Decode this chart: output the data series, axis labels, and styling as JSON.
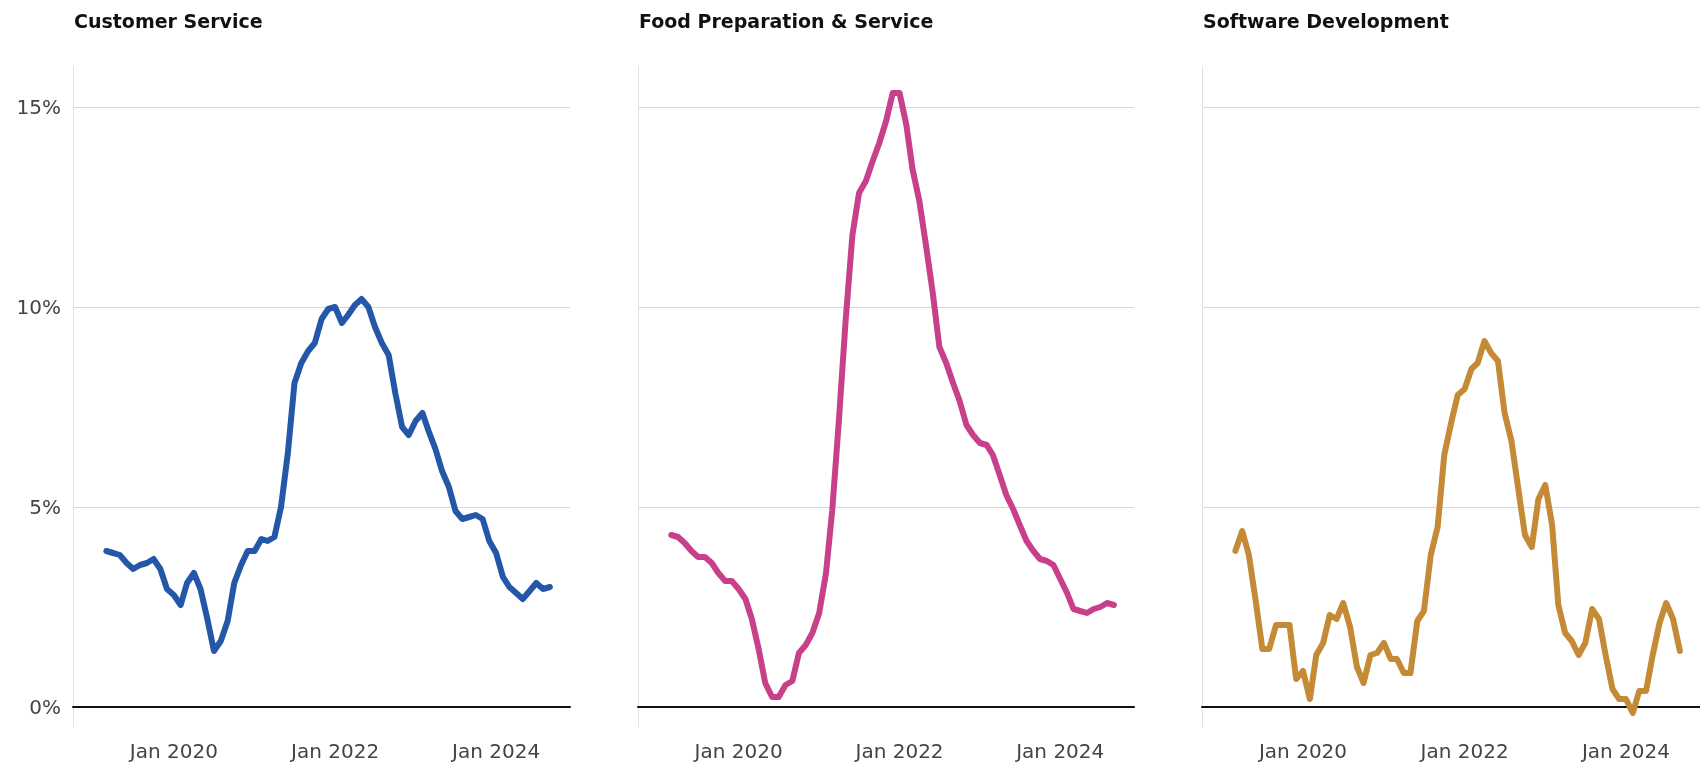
{
  "chart_data": [
    {
      "type": "line",
      "title": "Customer Service",
      "marker": "none",
      "grid": "y",
      "x": [
        "2019-03",
        "2019-04",
        "2019-05",
        "2019-06",
        "2019-07",
        "2019-08",
        "2019-09",
        "2019-10",
        "2019-11",
        "2019-12",
        "2020-01",
        "2020-02",
        "2020-03",
        "2020-04",
        "2020-05",
        "2020-06",
        "2020-07",
        "2020-08",
        "2020-09",
        "2020-10",
        "2020-11",
        "2020-12",
        "2021-01",
        "2021-02",
        "2021-03",
        "2021-04",
        "2021-05",
        "2021-06",
        "2021-07",
        "2021-08",
        "2021-09",
        "2021-10",
        "2021-11",
        "2021-12",
        "2022-01",
        "2022-02",
        "2022-03",
        "2022-04",
        "2022-05",
        "2022-06",
        "2022-07",
        "2022-08",
        "2022-09",
        "2022-10",
        "2022-11",
        "2022-12",
        "2023-01",
        "2023-02",
        "2023-03",
        "2023-04",
        "2023-05",
        "2023-06",
        "2023-07",
        "2023-08",
        "2023-09",
        "2023-10",
        "2023-11",
        "2023-12",
        "2024-01",
        "2024-02",
        "2024-03",
        "2024-04",
        "2024-05",
        "2024-06",
        "2024-07",
        "2024-08",
        "2024-09"
      ],
      "series": [
        {
          "color": "#2457a8",
          "values": [
            3.9,
            3.85,
            3.8,
            3.6,
            3.45,
            3.55,
            3.6,
            3.7,
            3.45,
            2.95,
            2.8,
            2.55,
            3.1,
            3.35,
            2.95,
            2.2,
            1.4,
            1.65,
            2.15,
            3.1,
            3.55,
            3.9,
            3.9,
            4.2,
            4.15,
            4.25,
            5.0,
            6.35,
            8.1,
            8.6,
            8.9,
            9.1,
            9.7,
            9.95,
            10.0,
            9.6,
            9.8,
            10.05,
            10.2,
            10.0,
            9.5,
            9.1,
            8.8,
            7.85,
            7.0,
            6.8,
            7.15,
            7.35,
            6.9,
            6.45,
            5.9,
            5.5,
            4.9,
            4.7,
            4.75,
            4.8,
            4.7,
            4.15,
            3.85,
            3.25,
            3.0,
            2.85,
            2.7,
            2.9,
            3.1,
            2.95,
            3.0
          ]
        }
      ],
      "xlim": [
        "2018-10",
        "2024-12"
      ],
      "xticks": [
        {
          "value": "2020-01",
          "label": "Jan 2020"
        },
        {
          "value": "2022-01",
          "label": "Jan 2022"
        },
        {
          "value": "2024-01",
          "label": "Jan 2024"
        }
      ],
      "ylim": [
        -0.5,
        16
      ],
      "yticks": [
        {
          "value": 0,
          "label": "0%"
        },
        {
          "value": 5,
          "label": "5%"
        },
        {
          "value": 10,
          "label": "10%"
        },
        {
          "value": 15,
          "label": "15%"
        }
      ]
    },
    {
      "type": "line",
      "title": "Food Preparation & Service",
      "marker": "none",
      "grid": "y",
      "tick_labels": "x",
      "x": [
        "2019-03",
        "2019-04",
        "2019-05",
        "2019-06",
        "2019-07",
        "2019-08",
        "2019-09",
        "2019-10",
        "2019-11",
        "2019-12",
        "2020-01",
        "2020-02",
        "2020-03",
        "2020-04",
        "2020-05",
        "2020-06",
        "2020-07",
        "2020-08",
        "2020-09",
        "2020-10",
        "2020-11",
        "2020-12",
        "2021-01",
        "2021-02",
        "2021-03",
        "2021-04",
        "2021-05",
        "2021-06",
        "2021-07",
        "2021-08",
        "2021-09",
        "2021-10",
        "2021-11",
        "2021-12",
        "2022-01",
        "2022-02",
        "2022-03",
        "2022-04",
        "2022-05",
        "2022-06",
        "2022-07",
        "2022-08",
        "2022-09",
        "2022-10",
        "2022-11",
        "2022-12",
        "2023-01",
        "2023-02",
        "2023-03",
        "2023-04",
        "2023-05",
        "2023-06",
        "2023-07",
        "2023-08",
        "2023-09",
        "2023-10",
        "2023-11",
        "2023-12",
        "2024-01",
        "2024-02",
        "2024-03",
        "2024-04",
        "2024-05",
        "2024-06",
        "2024-07",
        "2024-08",
        "2024-09"
      ],
      "series": [
        {
          "color": "#c8408a",
          "values": [
            4.3,
            4.25,
            4.1,
            3.9,
            3.75,
            3.75,
            3.6,
            3.35,
            3.15,
            3.15,
            2.95,
            2.7,
            2.2,
            1.45,
            0.6,
            0.25,
            0.25,
            0.55,
            0.65,
            1.35,
            1.55,
            1.85,
            2.35,
            3.35,
            4.9,
            7.2,
            9.65,
            11.8,
            12.85,
            13.15,
            13.65,
            14.1,
            14.65,
            15.35,
            15.35,
            14.55,
            13.45,
            12.65,
            11.55,
            10.35,
            9.0,
            8.6,
            8.1,
            7.65,
            7.05,
            6.8,
            6.6,
            6.55,
            6.3,
            5.8,
            5.3,
            4.95,
            4.55,
            4.15,
            3.9,
            3.7,
            3.65,
            3.55,
            3.2,
            2.85,
            2.45,
            2.4,
            2.35,
            2.45,
            2.5,
            2.6,
            2.55
          ]
        }
      ],
      "xlim": [
        "2018-10",
        "2024-12"
      ],
      "xticks": [
        {
          "value": "2020-01",
          "label": "Jan 2020"
        },
        {
          "value": "2022-01",
          "label": "Jan 2022"
        },
        {
          "value": "2024-01",
          "label": "Jan 2024"
        }
      ],
      "ylim": [
        -0.5,
        16
      ],
      "yticks": [
        0,
        5,
        10,
        15
      ]
    },
    {
      "type": "line",
      "title": "Software Development",
      "marker": "none",
      "grid": "y",
      "tick_labels": "x",
      "x": [
        "2019-03",
        "2019-04",
        "2019-05",
        "2019-06",
        "2019-07",
        "2019-08",
        "2019-09",
        "2019-10",
        "2019-11",
        "2019-12",
        "2020-01",
        "2020-02",
        "2020-03",
        "2020-04",
        "2020-05",
        "2020-06",
        "2020-07",
        "2020-08",
        "2020-09",
        "2020-10",
        "2020-11",
        "2020-12",
        "2021-01",
        "2021-02",
        "2021-03",
        "2021-04",
        "2021-05",
        "2021-06",
        "2021-07",
        "2021-08",
        "2021-09",
        "2021-10",
        "2021-11",
        "2021-12",
        "2022-01",
        "2022-02",
        "2022-03",
        "2022-04",
        "2022-05",
        "2022-06",
        "2022-07",
        "2022-08",
        "2022-09",
        "2022-10",
        "2022-11",
        "2022-12",
        "2023-01",
        "2023-02",
        "2023-03",
        "2023-04",
        "2023-05",
        "2023-06",
        "2023-07",
        "2023-08",
        "2023-09",
        "2023-10",
        "2023-11",
        "2023-12",
        "2024-01",
        "2024-02",
        "2024-03",
        "2024-04",
        "2024-05",
        "2024-06",
        "2024-07",
        "2024-08",
        "2024-09"
      ],
      "series": [
        {
          "color": "#c48a35",
          "values": [
            3.9,
            4.4,
            3.8,
            2.65,
            1.45,
            1.45,
            2.05,
            2.05,
            2.05,
            0.7,
            0.9,
            0.2,
            1.3,
            1.6,
            2.3,
            2.2,
            2.6,
            2.0,
            1.0,
            0.6,
            1.3,
            1.35,
            1.6,
            1.2,
            1.2,
            0.85,
            0.85,
            2.15,
            2.4,
            3.8,
            4.5,
            6.3,
            7.1,
            7.8,
            7.95,
            8.45,
            8.6,
            9.15,
            8.85,
            8.65,
            7.35,
            6.65,
            5.45,
            4.3,
            4.0,
            5.2,
            5.55,
            4.55,
            2.55,
            1.85,
            1.65,
            1.3,
            1.6,
            2.45,
            2.2,
            1.3,
            0.45,
            0.2,
            0.2,
            -0.15,
            0.4,
            0.4,
            1.3,
            2.1,
            2.6,
            2.2,
            1.4
          ]
        }
      ],
      "xlim": [
        "2018-10",
        "2024-12"
      ],
      "xticks": [
        {
          "value": "2020-01",
          "label": "Jan 2020"
        },
        {
          "value": "2022-01",
          "label": "Jan 2022"
        },
        {
          "value": "2024-01",
          "label": "Jan 2024"
        }
      ],
      "ylim": [
        -0.5,
        16
      ],
      "yticks": [
        0,
        5,
        10,
        15
      ]
    }
  ]
}
